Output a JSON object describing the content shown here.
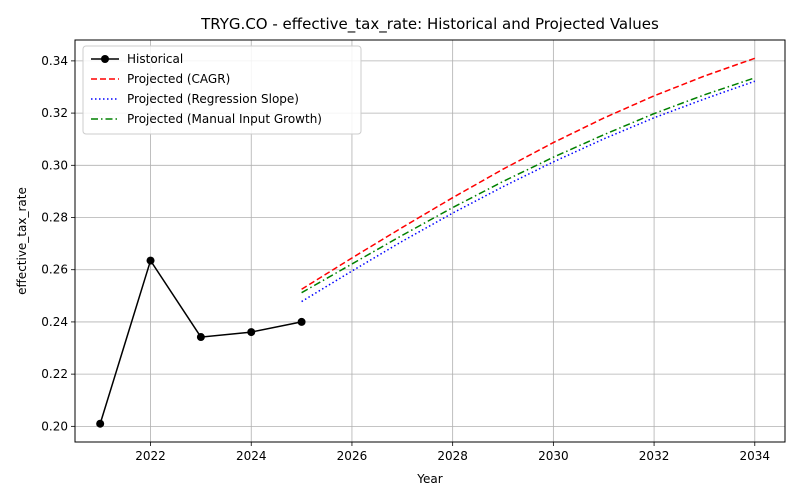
{
  "chart_data": {
    "type": "line",
    "title": "TRYG.CO - effective_tax_rate: Historical and Projected Values",
    "xlabel": "Year",
    "ylabel": "effective_tax_rate",
    "xlim": [
      2020.5,
      2034.6
    ],
    "ylim": [
      0.194,
      0.348
    ],
    "x_ticks": [
      2022,
      2024,
      2026,
      2028,
      2030,
      2032,
      2034
    ],
    "x_tick_labels": [
      "2022",
      "2024",
      "2026",
      "2028",
      "2030",
      "2032",
      "2034"
    ],
    "y_ticks": [
      0.2,
      0.22,
      0.24,
      0.26,
      0.28,
      0.3,
      0.32,
      0.34
    ],
    "y_tick_labels": [
      "0.20",
      "0.22",
      "0.24",
      "0.26",
      "0.28",
      "0.30",
      "0.32",
      "0.34"
    ],
    "grid": true,
    "legend_position": "top-left",
    "series": [
      {
        "name": "Historical",
        "color": "#000000",
        "style": "solid-marker",
        "x": [
          2021,
          2022,
          2023,
          2024,
          2025
        ],
        "y": [
          0.201,
          0.2635,
          0.2342,
          0.2361,
          0.24
        ]
      },
      {
        "name": "Projected (CAGR)",
        "color": "#ff0000",
        "style": "dashed",
        "x": [
          2025,
          2026,
          2027,
          2028,
          2029,
          2030,
          2031,
          2032,
          2033,
          2034
        ],
        "y": [
          0.2525,
          0.2645,
          0.2762,
          0.2876,
          0.2985,
          0.3087,
          0.3181,
          0.3266,
          0.3342,
          0.341
        ]
      },
      {
        "name": "Projected (Regression Slope)",
        "color": "#0000ff",
        "style": "dotted",
        "x": [
          2025,
          2026,
          2027,
          2028,
          2029,
          2030,
          2031,
          2032,
          2033,
          2034
        ],
        "y": [
          0.2478,
          0.2595,
          0.2709,
          0.2817,
          0.2918,
          0.3013,
          0.3101,
          0.3182,
          0.3254,
          0.3322
        ]
      },
      {
        "name": "Projected (Manual Input Growth)",
        "color": "#008000",
        "style": "dashdot",
        "x": [
          2025,
          2026,
          2027,
          2028,
          2029,
          2030,
          2031,
          2032,
          2033,
          2034
        ],
        "y": [
          0.2512,
          0.2622,
          0.2732,
          0.2838,
          0.2938,
          0.3031,
          0.3117,
          0.3198,
          0.327,
          0.3335
        ]
      }
    ]
  }
}
